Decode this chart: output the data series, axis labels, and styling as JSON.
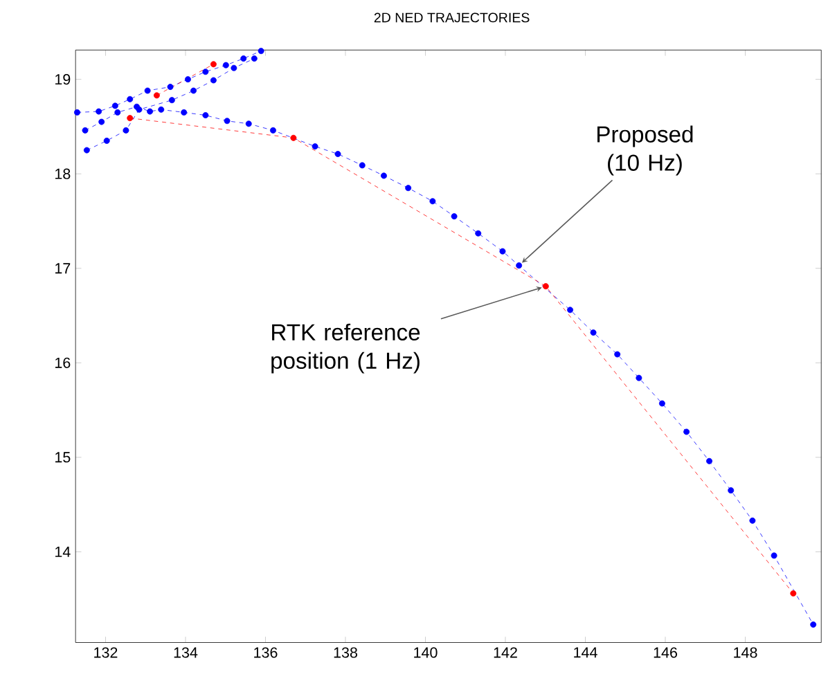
{
  "chart_data": {
    "type": "line",
    "title": "2D NED TRAJECTORIES",
    "marker": "circle",
    "line_style": "dashed",
    "xlim": [
      131.25,
      149.9
    ],
    "ylim": [
      13.04,
      19.31
    ],
    "xticks": [
      132,
      134,
      136,
      138,
      140,
      142,
      144,
      146,
      148
    ],
    "yticks": [
      14,
      15,
      16,
      17,
      18,
      19
    ],
    "series": [
      {
        "color": "#0000ff",
        "x": [
          131.29,
          131.83,
          132.24,
          132.61,
          133.05,
          133.62,
          134.06,
          134.5,
          135.01,
          135.45,
          135.89
        ],
        "values": [
          18.65,
          18.66,
          18.72,
          18.79,
          18.88,
          18.92,
          19.0,
          19.08,
          19.15,
          19.22,
          19.3
        ]
      },
      {
        "color": "#0000ff",
        "x": [
          131.49,
          131.9,
          132.3,
          132.78,
          133.11,
          133.39,
          133.96,
          134.5,
          135.04,
          135.58,
          136.19,
          137.24,
          137.81,
          138.42,
          138.96,
          139.57,
          140.18,
          140.72,
          141.32,
          141.93,
          142.34,
          143.62,
          144.2,
          144.8,
          145.34,
          145.92,
          146.53,
          147.1,
          147.64,
          148.18,
          148.72,
          149.7
        ],
        "values": [
          18.46,
          18.55,
          18.65,
          18.71,
          18.66,
          18.68,
          18.65,
          18.62,
          18.56,
          18.53,
          18.46,
          18.29,
          18.21,
          18.09,
          17.98,
          17.85,
          17.71,
          17.55,
          17.37,
          17.18,
          17.03,
          16.56,
          16.32,
          16.09,
          15.84,
          15.57,
          15.27,
          14.96,
          14.65,
          14.33,
          13.96,
          13.23
        ]
      },
      {
        "color": "#0000ff",
        "x": [
          131.53,
          132.03,
          132.51,
          132.84,
          133.66,
          134.2,
          134.7,
          135.21,
          135.72
        ],
        "values": [
          18.25,
          18.35,
          18.46,
          18.68,
          18.78,
          18.88,
          18.99,
          19.12,
          19.22
        ]
      },
      {
        "color": "#ff0000",
        "x": [
          132.61,
          136.7,
          143.01,
          149.2
        ],
        "values": [
          18.59,
          18.38,
          16.81,
          13.56
        ]
      },
      {
        "color": "#ff0000",
        "x": [
          133.28,
          134.7
        ],
        "values": [
          18.83,
          19.16
        ]
      }
    ],
    "annotations": [
      {
        "text": "Proposed (10 Hz)",
        "x": 142.34,
        "y": 17.03
      },
      {
        "text": "RTK reference position (1 Hz)",
        "x": 143.01,
        "y": 16.81
      }
    ]
  }
}
